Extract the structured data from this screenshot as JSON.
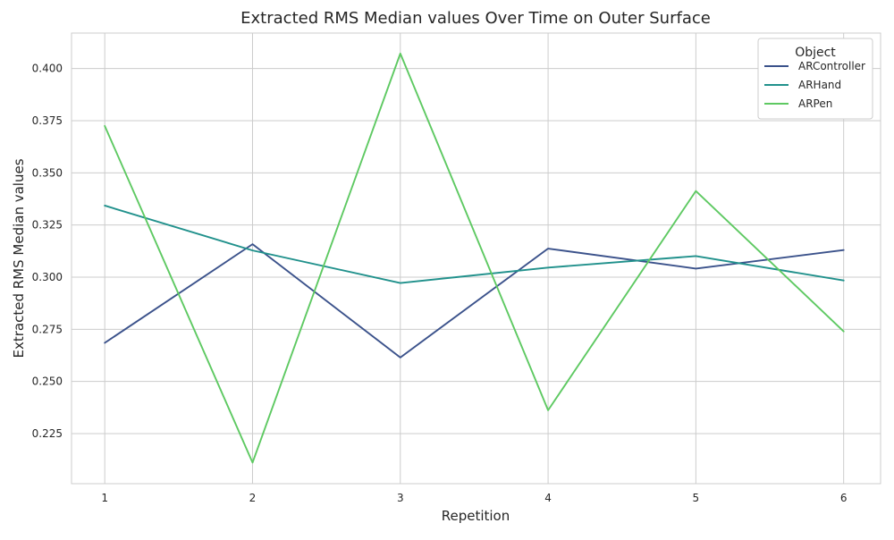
{
  "chart_data": {
    "type": "line",
    "title": "Extracted RMS Median values Over Time on Outer Surface",
    "xlabel": "Repetition",
    "ylabel": "Extracted RMS Median values",
    "x": [
      1,
      2,
      3,
      4,
      5,
      6
    ],
    "x_ticks": [
      "1",
      "2",
      "3",
      "4",
      "5",
      "6"
    ],
    "xlim": [
      0.775,
      6.25
    ],
    "ylim": [
      0.201,
      0.417
    ],
    "y_ticks": [
      "0.225",
      "0.250",
      "0.275",
      "0.300",
      "0.325",
      "0.350",
      "0.375",
      "0.400"
    ],
    "grid": true,
    "legend": {
      "title": "Object",
      "placement": "top-right"
    },
    "series": [
      {
        "name": "ARController",
        "color": "#3b528b",
        "values": [
          0.2685,
          0.3158,
          0.2615,
          0.3137,
          0.3041,
          0.313
        ]
      },
      {
        "name": "ARHand",
        "color": "#21918c",
        "values": [
          0.3343,
          0.3128,
          0.2972,
          0.3046,
          0.3101,
          0.2984
        ]
      },
      {
        "name": "ARPen",
        "color": "#5ec962",
        "values": [
          0.3725,
          0.2111,
          0.4072,
          0.2362,
          0.3413,
          0.274
        ]
      }
    ]
  }
}
